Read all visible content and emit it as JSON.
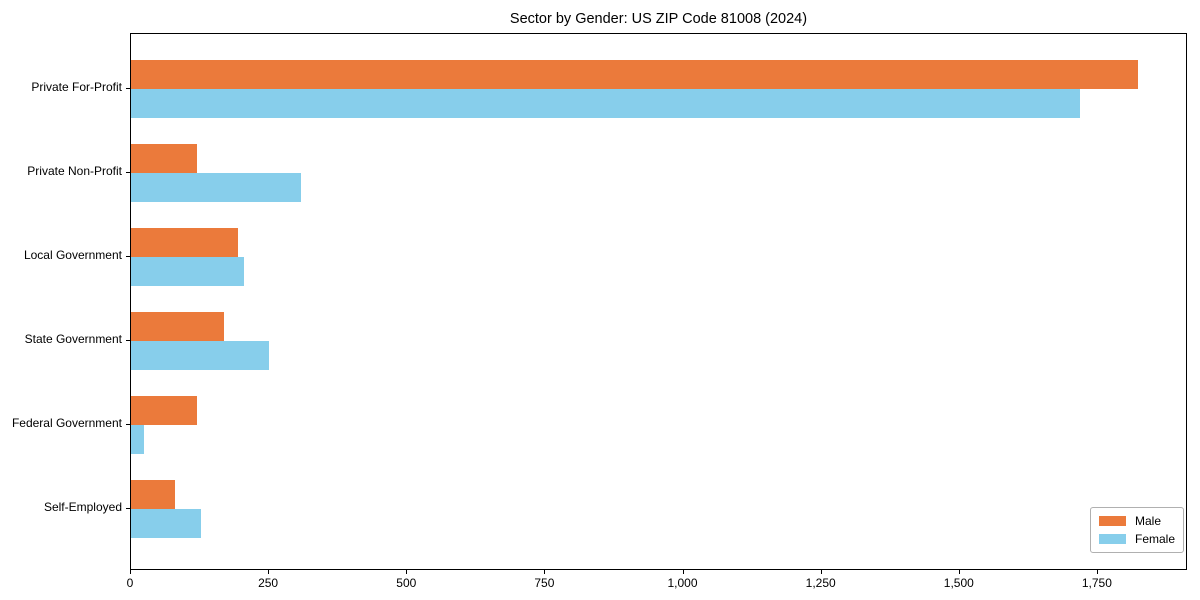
{
  "figure": {
    "background": "#ffffff"
  },
  "chart_data": {
    "type": "bar",
    "orientation": "horizontal",
    "title": "Sector by Gender: US ZIP Code 81008 (2024)",
    "categories": [
      "Private For-Profit",
      "Private Non-Profit",
      "Local Government",
      "State Government",
      "Federal Government",
      "Self-Employed"
    ],
    "series": [
      {
        "name": "Male",
        "color": "#eb7a3b",
        "values": [
          1822,
          119,
          193,
          169,
          120,
          79
        ]
      },
      {
        "name": "Female",
        "color": "#87ceeb",
        "values": [
          1717,
          307,
          204,
          249,
          24,
          126
        ]
      }
    ],
    "xlabel": "",
    "ylabel": "",
    "xlim": [
      0,
      1913
    ],
    "xticks": [
      0,
      250,
      500,
      750,
      1000,
      1250,
      1500,
      1750
    ],
    "xtick_labels": [
      "0",
      "250",
      "500",
      "750",
      "1,000",
      "1,250",
      "1,500",
      "1,750"
    ],
    "grid": false,
    "legend": {
      "position": "lower right"
    },
    "spine_color": "#000000"
  }
}
